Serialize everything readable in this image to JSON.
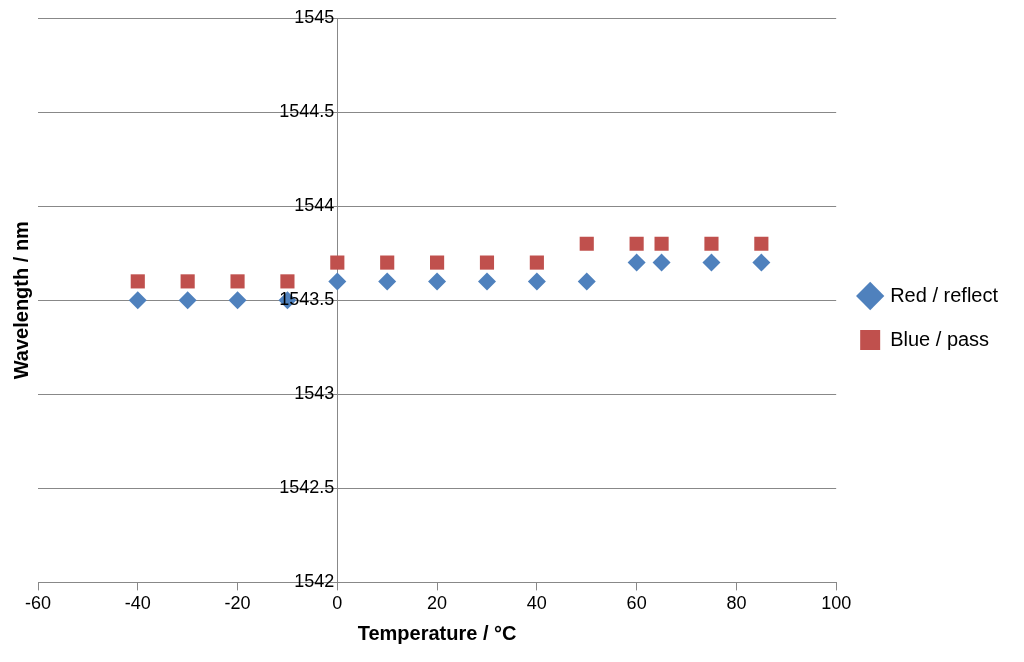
{
  "chart_data": {
    "type": "scatter",
    "xlabel": "Temperature / °C",
    "ylabel": "Wavelength / nm",
    "x": [
      -40,
      -30,
      -20,
      -10,
      0,
      10,
      20,
      30,
      40,
      50,
      60,
      65,
      75,
      85
    ],
    "series": [
      {
        "name": "Red / reflect",
        "color": "#4f81bd",
        "marker": "diamond",
        "values": [
          1543.5,
          1543.5,
          1543.5,
          1543.5,
          1543.6,
          1543.6,
          1543.6,
          1543.6,
          1543.6,
          1543.6,
          1543.7,
          1543.7,
          1543.7,
          1543.7
        ]
      },
      {
        "name": "Blue / pass",
        "color": "#c0504d",
        "marker": "square",
        "values": [
          1543.6,
          1543.6,
          1543.6,
          1543.6,
          1543.7,
          1543.7,
          1543.7,
          1543.7,
          1543.7,
          1543.8,
          1543.8,
          1543.8,
          1543.8,
          1543.8
        ]
      }
    ],
    "xlim": [
      -60,
      100
    ],
    "xticks": [
      -60,
      -40,
      -20,
      0,
      20,
      40,
      60,
      80,
      100
    ],
    "ylim": [
      1542,
      1545
    ],
    "yticks": [
      1542,
      1542.5,
      1543,
      1543.5,
      1544,
      1544.5,
      1545
    ],
    "grid": "y",
    "legend": "right"
  }
}
